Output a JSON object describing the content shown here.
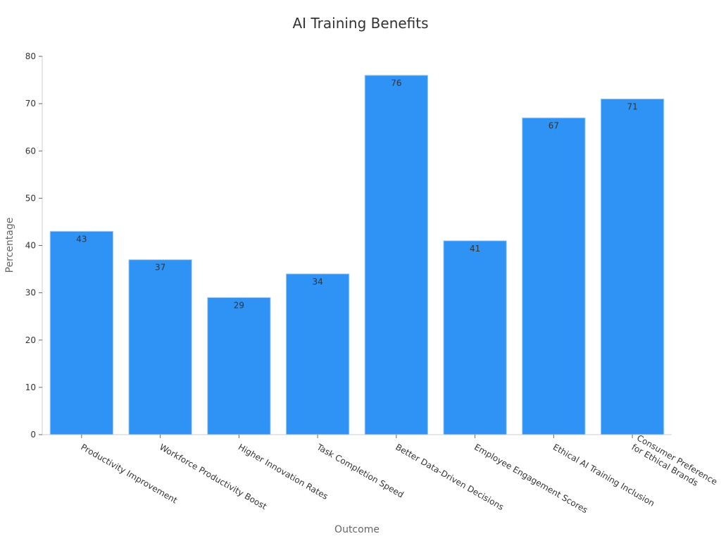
{
  "chart_data": {
    "type": "bar",
    "title": "AI Training Benefits",
    "xlabel": "Outcome",
    "ylabel": "Percentage",
    "categories": [
      [
        "Productivity Improvement"
      ],
      [
        "Workforce Productivity Boost"
      ],
      [
        "Higher Innovation Rates"
      ],
      [
        "Task Completion Speed"
      ],
      [
        "Better Data-Driven Decisions"
      ],
      [
        "Employee Engagement Scores"
      ],
      [
        "Ethical AI Training Inclusion"
      ],
      [
        "Consumer Preference",
        "for Ethical Brands"
      ]
    ],
    "values": [
      43,
      37,
      29,
      34,
      76,
      41,
      67,
      71
    ],
    "ylim": [
      0,
      80
    ],
    "yticks": [
      0,
      10,
      20,
      30,
      40,
      50,
      60,
      70,
      80
    ],
    "grid": false,
    "bar_color": "#2e93f5"
  }
}
